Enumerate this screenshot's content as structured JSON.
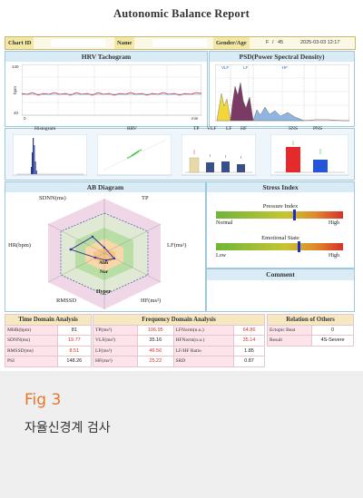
{
  "report": {
    "title": "Autonomic Balance Report"
  },
  "header": {
    "chart_id_label": "Chart ID",
    "name_label": "Name",
    "gender_age_label": "Gender/Age",
    "gender": "F",
    "age": "45",
    "datetime": "2025-03-03 12:17"
  },
  "hrv": {
    "title": "HRV Tachogram",
    "y_max": "140",
    "y_min": "40",
    "y_unit": "bpm",
    "x_min": "0",
    "x_unit": "min"
  },
  "psd": {
    "title": "PSD(Power Spectral Density)",
    "band_vlf": "VLF",
    "band_lf": "LF",
    "band_hf": "HF"
  },
  "small_panels": {
    "histogram": "Histogram",
    "rrv": "RRV",
    "bands": [
      "TP",
      "VLF",
      "LF",
      "HF"
    ],
    "sns": "SNS",
    "pns": "PNS"
  },
  "ab": {
    "title": "AB Diagram",
    "sdnn": "SDNN(ms)",
    "tp": "TP",
    "lf": "LF(ms²)",
    "hf": "HF(ms²)",
    "rmssd": "RMSSD",
    "hr": "HR(bpm)",
    "abn": "Abn",
    "nor": "Nor",
    "hyper": "Hyper"
  },
  "stress": {
    "title": "Stress Index",
    "pressure_label": "Pressure Index",
    "pressure_low": "Normal",
    "pressure_high": "High",
    "pressure_level": 0.62,
    "emotional_label": "Emotional State",
    "emotional_low": "Low",
    "emotional_high": "High",
    "emotional_level": 0.65
  },
  "comment": {
    "title": "Comment"
  },
  "tables": {
    "time_title": "Time Domain Analysis",
    "freq_title": "Frequency Domain Analysis",
    "rel_title": "Relation of Others",
    "time_rows": [
      {
        "label": "MHR(bpm)",
        "value": "81",
        "red": false
      },
      {
        "label": "SDNN(ms)",
        "value": "19.77",
        "red": true
      },
      {
        "label": "RMSSD(ms)",
        "value": "8.51",
        "red": true
      },
      {
        "label": "PSI",
        "value": "148.26",
        "red": false
      }
    ],
    "freq_rows": [
      {
        "l1": "TP(ms²)",
        "v1": "106.95",
        "r1": true,
        "l2": "LFNorm(n.u.)",
        "v2": "64.86",
        "r2": true
      },
      {
        "l1": "VLF(ms²)",
        "v1": "35.16",
        "r1": false,
        "l2": "HFNorm(n.u.)",
        "v2": "35.14",
        "r2": true
      },
      {
        "l1": "LF(ms²)",
        "v1": "46.56",
        "r1": true,
        "l2": "LF/HF Ratio",
        "v2": "1.85",
        "r2": false
      },
      {
        "l1": "HF(ms²)",
        "v1": "25.22",
        "r1": true,
        "l2": "SRD",
        "v2": "0.87",
        "r2": false
      }
    ],
    "rel_rows": [
      {
        "label": "Ectopic Beat",
        "value": "0"
      },
      {
        "label": "Result",
        "value": "4S-Severe"
      }
    ]
  },
  "caption": {
    "fig": "Fig 3",
    "text": "자율신경계 검사"
  }
}
